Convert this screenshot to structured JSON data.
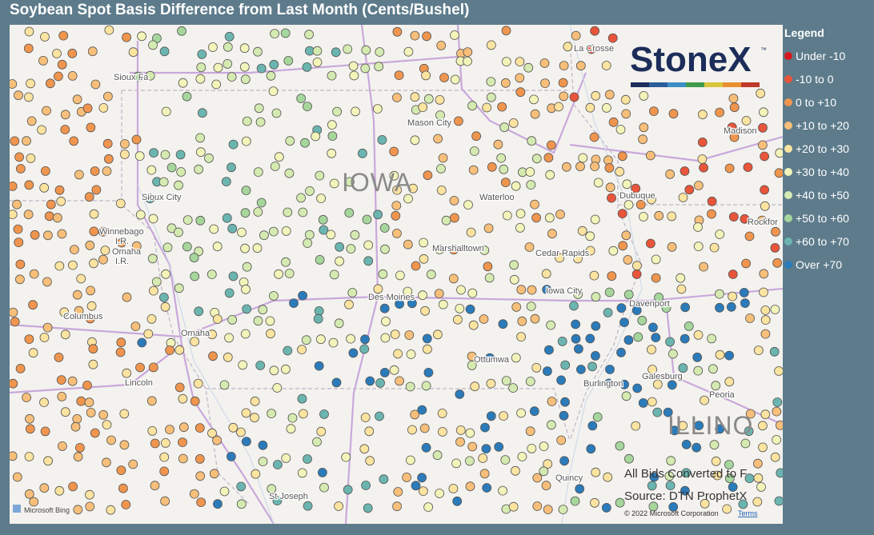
{
  "title": "Soybean Spot Basis Difference from Last Month (Cents/Bushel)",
  "legend": {
    "title": "Legend",
    "items": [
      {
        "label": "Under -10",
        "color": "#d7191c"
      },
      {
        "label": "-10 to 0",
        "color": "#e8553a"
      },
      {
        "label": "0 to +10",
        "color": "#f0954e"
      },
      {
        "label": "+10 to +20",
        "color": "#f7bf7a"
      },
      {
        "label": "+20 to +30",
        "color": "#fbe3a0"
      },
      {
        "label": "+30 to +40",
        "color": "#f3f4b9"
      },
      {
        "label": "+40 to +50",
        "color": "#d5eab0"
      },
      {
        "label": "+50 to +60",
        "color": "#a6d69c"
      },
      {
        "label": "+60 to +70",
        "color": "#6bb5b0"
      },
      {
        "label": "Over +70",
        "color": "#2b7bba"
      }
    ]
  },
  "map": {
    "labels": [
      "La Crosse",
      "Sioux Fa",
      "Mason City",
      "Madison",
      "Sioux City",
      "Waterloo",
      "Dubuque",
      "Rockfor",
      "Winnebago",
      "I.R.",
      "Omaha",
      "I.R.",
      "Marshalltown",
      "Cedar Rapids",
      "Iowa City",
      "Des Moines",
      "Davenport",
      "Columbus",
      "Omaha",
      "Ottumwa",
      "Galesburg",
      "Burlington",
      "Lincoln",
      "Peoria",
      "Quincy",
      "St Joseph"
    ],
    "state_labels": [
      "IOWA",
      "ILLINO"
    ]
  },
  "logo": {
    "name": "StoneX",
    "mark": "™"
  },
  "notes": [
    "All Bids Converted to F",
    "Source: DTN ProphetX"
  ],
  "attribution": {
    "bing": "Microsoft Bing",
    "copyright": "© 2022 Microsoft Corporation",
    "terms": "Terms"
  }
}
